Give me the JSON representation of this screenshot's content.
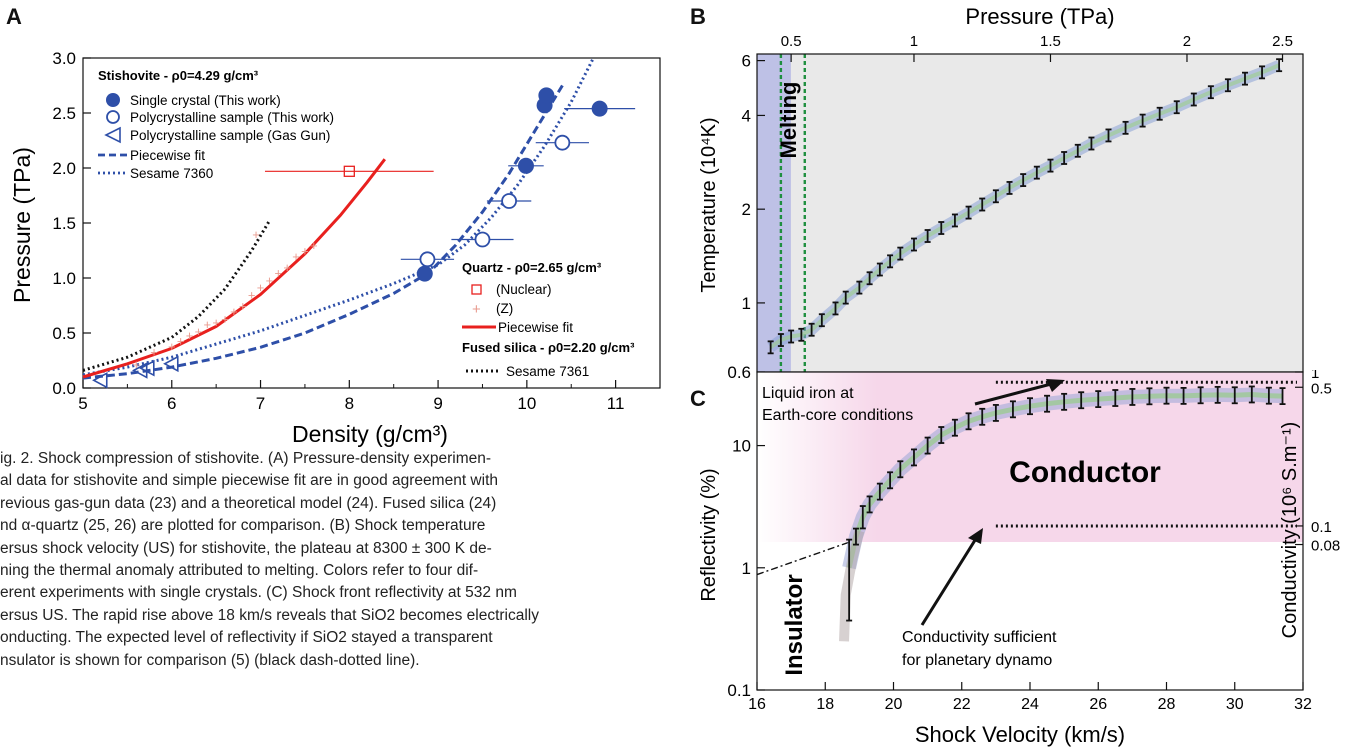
{
  "panel_labels": {
    "a": "A",
    "b": "B",
    "c": "C"
  },
  "caption": {
    "lines": [
      "ig. 2. Shock compression of stishovite. (A) Pressure-density experimen-",
      "al data for stishovite and simple piecewise fit are in good agreement with",
      "revious gas-gun data (23) and a theoretical model (24). Fused silica (24)",
      "nd α-quartz (25, 26) are plotted for comparison. (B) Shock temperature",
      "ersus shock velocity (US) for stishovite, the plateau at 8300 ± 300 K de-",
      "ning the thermal anomaly attributed to melting. Colors refer to four dif-",
      "erent experiments with single crystals. (C) Shock front reflectivity at 532 nm",
      "ersus US. The rapid rise above 18 km/s reveals that SiO2 becomes electrically",
      "onducting. The expected level of reflectivity if SiO2 stayed a transparent",
      "nsulator is shown for comparison (5) (black dash-dotted line)."
    ]
  },
  "colors": {
    "blue": "#2e4fa8",
    "red": "#e8201e",
    "black": "#111111",
    "grid_bg": "#e9e9e9",
    "pink": "#f6d7ea",
    "melt_blue": "#b9bde6",
    "green_dash": "#1f8f3f"
  },
  "chart_data": [
    {
      "id": "A",
      "type": "scatter",
      "xlabel": "Density (g/cm³)",
      "ylabel": "Pressure (TPa)",
      "xlim": [
        5,
        11.5
      ],
      "ylim": [
        0,
        3.0
      ],
      "xticks": [
        "5",
        "6",
        "7",
        "8",
        "9",
        "10",
        "11"
      ],
      "yticks": [
        "0.0",
        "0.5",
        "1.0",
        "1.5",
        "2.0",
        "2.5",
        "3.0"
      ],
      "legend_top": {
        "title": "Stishovite - ρ0=4.29 g/cm³",
        "entries": [
          "Single crystal (This work)",
          "Polycrystalline sample (This work)",
          "Polycrystalline sample (Gas Gun)",
          "Piecewise fit",
          "Sesame 7360"
        ]
      },
      "legend_bottom": {
        "quartz_title": "Quartz - ρ0=2.65 g/cm³",
        "quartz_entries": [
          "(Nuclear)",
          "(Z)",
          "Piecewise fit"
        ],
        "fused_title": "Fused silica - ρ0=2.20 g/cm³",
        "fused_entries": [
          "Sesame 7361"
        ]
      },
      "series": [
        {
          "name": "Single crystal (This work)",
          "x": [
            8.85,
            9.99,
            10.2,
            10.22,
            10.82
          ],
          "xerr": [
            0,
            0.2,
            0,
            0,
            0.4
          ],
          "y": [
            1.04,
            2.02,
            2.57,
            2.66,
            2.54
          ]
        },
        {
          "name": "Polycrystalline sample (This work)",
          "x": [
            8.88,
            9.5,
            9.8,
            10.4
          ],
          "xerr": [
            0.3,
            0.35,
            0.25,
            0.3
          ],
          "y": [
            1.17,
            1.35,
            1.7,
            2.23
          ]
        },
        {
          "name": "Polycrystalline sample (Gas Gun)",
          "x": [
            5.2,
            5.65,
            5.73,
            6.0
          ],
          "y": [
            0.07,
            0.16,
            0.18,
            0.22
          ]
        },
        {
          "name": "Piecewise fit",
          "x": [
            5.0,
            5.5,
            6.0,
            6.5,
            7.0,
            7.5,
            8.0,
            8.5,
            8.9,
            9.2,
            9.5,
            9.8,
            10.1,
            10.4
          ],
          "y": [
            0.09,
            0.13,
            0.19,
            0.27,
            0.37,
            0.5,
            0.67,
            0.86,
            1.05,
            1.3,
            1.6,
            1.95,
            2.35,
            2.75
          ]
        },
        {
          "name": "Sesame 7360",
          "x": [
            5.0,
            5.5,
            6.0,
            6.5,
            7.0,
            7.5,
            8.0,
            8.5,
            9.0,
            9.3,
            9.6,
            9.9,
            10.2,
            10.5,
            10.75
          ],
          "y": [
            0.12,
            0.19,
            0.28,
            0.4,
            0.52,
            0.66,
            0.8,
            0.95,
            1.12,
            1.3,
            1.55,
            1.85,
            2.2,
            2.6,
            3.0
          ]
        },
        {
          "name": "(Nuclear)",
          "x": [
            8.0
          ],
          "xerr": [
            0.95
          ],
          "y": [
            1.97
          ]
        },
        {
          "name": "(Z)",
          "x": [
            5.6,
            5.8,
            6.0,
            6.1,
            6.2,
            6.3,
            6.4,
            6.5,
            6.6,
            6.7,
            6.8,
            6.9,
            7.0,
            7.1,
            7.2,
            7.3,
            7.4,
            7.5,
            7.6,
            6.95
          ],
          "y": [
            0.22,
            0.33,
            0.38,
            0.43,
            0.48,
            0.52,
            0.58,
            0.6,
            0.63,
            0.7,
            0.75,
            0.85,
            0.92,
            0.98,
            1.05,
            1.1,
            1.2,
            1.25,
            1.3,
            1.4
          ]
        },
        {
          "name": "Piecewise fit",
          "x": [
            5.0,
            5.5,
            6.0,
            6.5,
            7.0,
            7.5,
            7.9,
            8.2,
            8.4
          ],
          "y": [
            0.1,
            0.22,
            0.36,
            0.56,
            0.85,
            1.22,
            1.57,
            1.87,
            2.08
          ]
        },
        {
          "name": "Sesame 7361",
          "x": [
            5.0,
            5.5,
            6.0,
            6.3,
            6.6,
            6.9,
            7.1
          ],
          "y": [
            0.16,
            0.28,
            0.46,
            0.65,
            0.9,
            1.25,
            1.52
          ]
        }
      ]
    },
    {
      "id": "B",
      "type": "line",
      "xlabel": "",
      "top_axis_label": "Pressure (TPa)",
      "ylabel": "Temperature (10⁴K)",
      "ylog": true,
      "xlim": [
        16,
        32
      ],
      "ylim": [
        0.6,
        6.3
      ],
      "top_ticks": [
        "0.5",
        "1",
        "1.5",
        "2",
        "2.5"
      ],
      "top_tick_x": [
        17.0,
        20.6,
        24.6,
        28.6,
        31.4
      ],
      "yticks": [
        "0.6",
        "1",
        "2",
        "4",
        "6"
      ],
      "ytick_values": [
        0.6,
        1,
        2,
        4,
        6
      ],
      "annotations": [
        "Melting"
      ],
      "melting_band_x": [
        16.7,
        17.4
      ],
      "series": [
        {
          "name": "",
          "x": [
            16.4,
            16.7,
            17.0,
            17.3,
            17.6,
            17.9,
            18.3,
            18.6,
            19.0,
            19.3,
            19.6,
            19.9,
            20.2,
            20.6,
            21.0,
            21.4,
            21.8,
            22.2,
            22.6,
            23.0,
            23.4,
            23.8,
            24.2,
            24.6,
            25.0,
            25.4,
            25.8,
            26.3,
            26.8,
            27.3,
            27.8,
            28.3,
            28.8,
            29.3,
            29.8,
            30.3,
            30.8,
            31.3
          ],
          "y": [
            0.72,
            0.76,
            0.78,
            0.79,
            0.82,
            0.88,
            0.96,
            1.04,
            1.12,
            1.2,
            1.28,
            1.36,
            1.44,
            1.54,
            1.64,
            1.74,
            1.84,
            1.95,
            2.07,
            2.2,
            2.34,
            2.48,
            2.62,
            2.76,
            2.92,
            3.08,
            3.25,
            3.45,
            3.65,
            3.85,
            4.05,
            4.25,
            4.5,
            4.75,
            5.0,
            5.25,
            5.5,
            5.8
          ]
        }
      ]
    },
    {
      "id": "C",
      "type": "line",
      "xlabel": "Shock Velocity (km/s)",
      "ylabel": "Reflectivity (%)",
      "right_label": "Conductivity (10⁶ S.m⁻¹)",
      "ylog": true,
      "xlim": [
        16,
        32
      ],
      "ylim": [
        0.1,
        40
      ],
      "xticks": [
        "16",
        "18",
        "20",
        "22",
        "24",
        "26",
        "28",
        "30",
        "32"
      ],
      "yticks": [
        "0.1",
        "1",
        "10"
      ],
      "ytick_values": [
        0.1,
        1,
        10
      ],
      "right_ticks": [
        "1",
        "0.5",
        "0.1",
        "0.08"
      ],
      "right_tick_values": [
        40,
        30,
        2.2,
        1.55
      ],
      "regions": [
        "Insulator",
        "Conductor"
      ],
      "annotations": [
        "Liquid iron at",
        "Earth-core conditions",
        "Conductivity sufficient",
        "for planetary dynamo"
      ],
      "series": [
        {
          "name": "",
          "x": [
            18.7,
            18.9,
            19.1,
            19.3,
            19.6,
            19.9,
            20.2,
            20.6,
            21.0,
            21.4,
            21.8,
            22.2,
            22.6,
            23.0,
            23.5,
            24.0,
            24.5,
            25.0,
            25.5,
            26.0,
            26.5,
            27.0,
            27.5,
            28.0,
            28.5,
            29.0,
            29.5,
            30.0,
            30.5,
            31.0,
            31.4
          ],
          "y": [
            1.0,
            1.8,
            2.6,
            3.3,
            4.2,
            5.2,
            6.4,
            8.0,
            10.0,
            12.2,
            14.0,
            15.8,
            17.2,
            18.5,
            19.8,
            21.0,
            22.0,
            22.8,
            23.5,
            24.0,
            24.5,
            25.0,
            25.3,
            25.6,
            25.5,
            25.8,
            26.0,
            25.8,
            26.2,
            25.6,
            25.4
          ]
        },
        {
          "name": "",
          "x": [
            16.0,
            18.7
          ],
          "y": [
            0.88,
            1.62
          ]
        }
      ],
      "reference_levels": [
        {
          "y": 33,
          "x_from": 23.0
        },
        {
          "y": 2.2,
          "x_from": 23.0
        }
      ]
    }
  ]
}
